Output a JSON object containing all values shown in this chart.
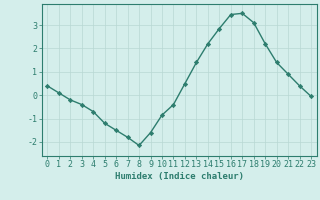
{
  "x": [
    0,
    1,
    2,
    3,
    4,
    5,
    6,
    7,
    8,
    9,
    10,
    11,
    12,
    13,
    14,
    15,
    16,
    17,
    18,
    19,
    20,
    21,
    22,
    23
  ],
  "y": [
    0.4,
    0.1,
    -0.2,
    -0.4,
    -0.7,
    -1.2,
    -1.5,
    -1.8,
    -2.15,
    -1.6,
    -0.85,
    -0.4,
    0.5,
    1.4,
    2.2,
    2.85,
    3.45,
    3.5,
    3.1,
    2.2,
    1.4,
    0.9,
    0.4,
    -0.05
  ],
  "line_color": "#2d7d6e",
  "marker": "D",
  "marker_size": 2.2,
  "bg_color": "#d4eeeb",
  "grid_color": "#b8d8d4",
  "axis_color": "#2d7d6e",
  "spine_color": "#2d7d6e",
  "xlabel": "Humidex (Indice chaleur)",
  "xlim": [
    -0.5,
    23.5
  ],
  "ylim": [
    -2.6,
    3.9
  ],
  "yticks": [
    -2,
    -1,
    0,
    1,
    2,
    3
  ],
  "xticks": [
    0,
    1,
    2,
    3,
    4,
    5,
    6,
    7,
    8,
    9,
    10,
    11,
    12,
    13,
    14,
    15,
    16,
    17,
    18,
    19,
    20,
    21,
    22,
    23
  ],
  "xlabel_fontsize": 6.5,
  "tick_fontsize": 6.0,
  "line_width": 1.0
}
